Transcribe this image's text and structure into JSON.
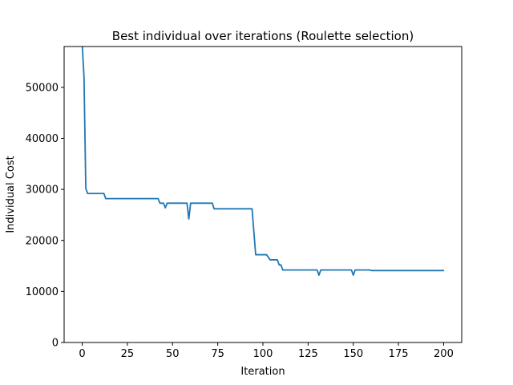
{
  "chart_data": {
    "type": "line",
    "title": "Best individual over iterations (Roulette selection)",
    "xlabel": "Iteration",
    "ylabel": "Individual Cost",
    "xlim": [
      -10,
      210
    ],
    "ylim": [
      0,
      58000
    ],
    "xticks": [
      0,
      25,
      50,
      75,
      100,
      125,
      150,
      175,
      200
    ],
    "yticks": [
      0,
      10000,
      20000,
      30000,
      40000,
      50000
    ],
    "grid": false,
    "legend": "none",
    "series": [
      {
        "color": "#1f77b4",
        "points": [
          [
            0,
            58500
          ],
          [
            1,
            52000
          ],
          [
            2,
            30200
          ],
          [
            3,
            29200
          ],
          [
            12,
            29200
          ],
          [
            13,
            28200
          ],
          [
            42,
            28200
          ],
          [
            43,
            27300
          ],
          [
            45,
            27300
          ],
          [
            46,
            26400
          ],
          [
            47,
            27300
          ],
          [
            58,
            27300
          ],
          [
            59,
            24200
          ],
          [
            60,
            27300
          ],
          [
            72,
            27300
          ],
          [
            73,
            26200
          ],
          [
            94,
            26200
          ],
          [
            96,
            17200
          ],
          [
            102,
            17200
          ],
          [
            104,
            16200
          ],
          [
            108,
            16200
          ],
          [
            109,
            15200
          ],
          [
            110,
            15200
          ],
          [
            111,
            14200
          ],
          [
            130,
            14200
          ],
          [
            131,
            13200
          ],
          [
            132,
            14200
          ],
          [
            149,
            14200
          ],
          [
            150,
            13200
          ],
          [
            151,
            14200
          ],
          [
            159,
            14200
          ],
          [
            160,
            14100
          ],
          [
            200,
            14100
          ]
        ]
      }
    ]
  }
}
